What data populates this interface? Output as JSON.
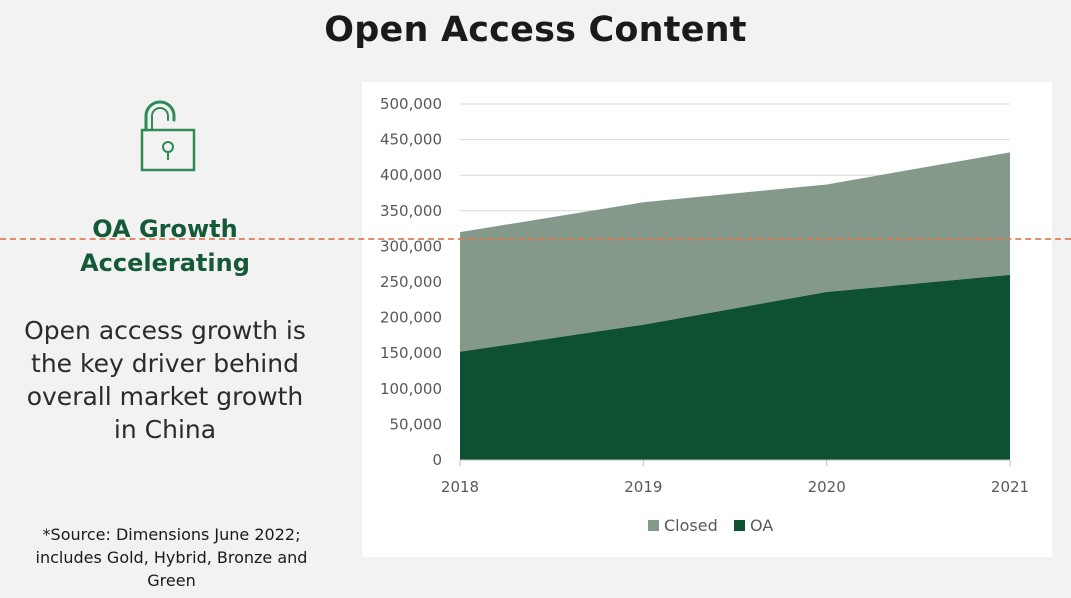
{
  "title": "Open Access Content",
  "sidebar": {
    "icon": "open-padlock-icon",
    "headline_line1": "OA Growth",
    "headline_line2": "Accelerating",
    "body_line1": "Open access growth is",
    "body_line2": "the key driver behind",
    "body_line3": "overall market growth",
    "body_line4": "in China",
    "source_line1": "*Source: Dimensions June 2022;",
    "source_line2": "includes Gold, Hybrid, Bronze and",
    "source_line3": "Green"
  },
  "colors": {
    "oa": "#0e5130",
    "closed": "#85998a",
    "accent_text": "#155a36",
    "guide_line": "#e07a4f"
  },
  "chart_data": {
    "type": "area",
    "stacked": true,
    "categories": [
      "2018",
      "2019",
      "2020",
      "2021"
    ],
    "series": [
      {
        "name": "OA",
        "values": [
          152000,
          190000,
          236000,
          260000
        ]
      },
      {
        "name": "Closed",
        "values": [
          168000,
          172000,
          151000,
          172000
        ]
      }
    ],
    "ylim": [
      0,
      500000
    ],
    "yticks": [
      0,
      50000,
      100000,
      150000,
      200000,
      250000,
      300000,
      350000,
      400000,
      450000,
      500000
    ],
    "ytick_labels": [
      "0",
      "50,000",
      "100,000",
      "150,000",
      "200,000",
      "250,000",
      "300,000",
      "350,000",
      "400,000",
      "450,000",
      "500,000"
    ],
    "grid": true,
    "legend_position": "bottom",
    "legend": [
      "Closed",
      "OA"
    ]
  }
}
